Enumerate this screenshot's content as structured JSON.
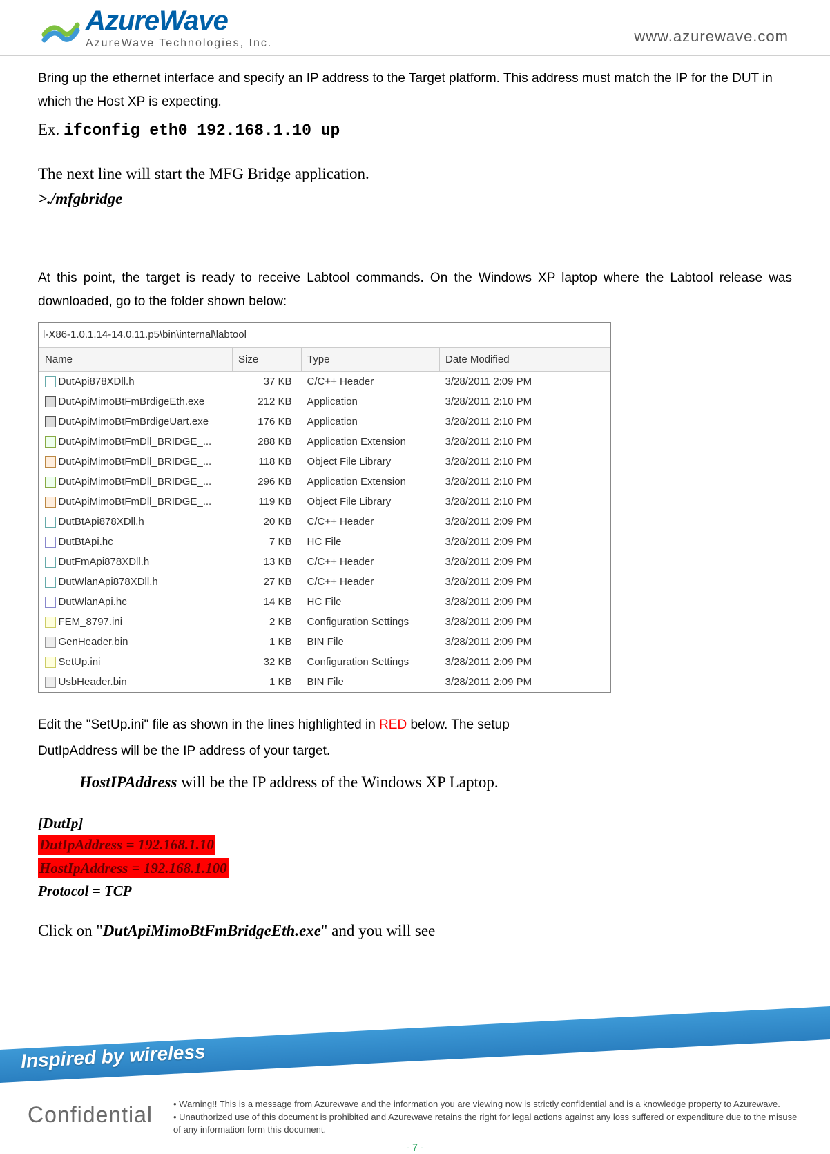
{
  "header": {
    "logo_name": "AzureWave",
    "logo_sub": "AzureWave  Technologies,  Inc.",
    "url": "www.azurewave.com",
    "logo_colors": {
      "wave1": "#7ec13f",
      "wave2": "#3d99d6",
      "text": "#0060a8"
    }
  },
  "body": {
    "p1": "Bring up the ethernet interface and specify an IP address to the Target platform. This address must match the IP for the DUT in which the Host XP is expecting.",
    "ex_label": "Ex.",
    "ex_cmd": "ifconfig eth0 192.168.1.10 up",
    "p2": "The next line will start the MFG Bridge application.",
    "p2_cmd": ">./mfgbridge",
    "p3": "At this point, the target is ready to receive Labtool commands. On the Windows XP laptop where the Labtool release was downloaded, go to the folder shown below:",
    "folder_path": "l-X86-1.0.1.14-14.0.11.p5\\bin\\internal\\labtool",
    "columns": [
      "Name",
      "Size",
      "Type",
      "Date Modified"
    ],
    "files": [
      {
        "icon": "h",
        "name": "DutApi878XDll.h",
        "size": "37 KB",
        "type": "C/C++ Header",
        "date": "3/28/2011 2:09 PM"
      },
      {
        "icon": "exe",
        "name": "DutApiMimoBtFmBrdigeEth.exe",
        "size": "212 KB",
        "type": "Application",
        "date": "3/28/2011 2:10 PM"
      },
      {
        "icon": "exe",
        "name": "DutApiMimoBtFmBrdigeUart.exe",
        "size": "176 KB",
        "type": "Application",
        "date": "3/28/2011 2:10 PM"
      },
      {
        "icon": "dll",
        "name": "DutApiMimoBtFmDll_BRIDGE_...",
        "size": "288 KB",
        "type": "Application Extension",
        "date": "3/28/2011 2:10 PM"
      },
      {
        "icon": "lib",
        "name": "DutApiMimoBtFmDll_BRIDGE_...",
        "size": "118 KB",
        "type": "Object File Library",
        "date": "3/28/2011 2:10 PM"
      },
      {
        "icon": "dll",
        "name": "DutApiMimoBtFmDll_BRIDGE_...",
        "size": "296 KB",
        "type": "Application Extension",
        "date": "3/28/2011 2:10 PM"
      },
      {
        "icon": "lib",
        "name": "DutApiMimoBtFmDll_BRIDGE_...",
        "size": "119 KB",
        "type": "Object File Library",
        "date": "3/28/2011 2:10 PM"
      },
      {
        "icon": "h",
        "name": "DutBtApi878XDll.h",
        "size": "20 KB",
        "type": "C/C++ Header",
        "date": "3/28/2011 2:09 PM"
      },
      {
        "icon": "hc",
        "name": "DutBtApi.hc",
        "size": "7 KB",
        "type": "HC File",
        "date": "3/28/2011 2:09 PM"
      },
      {
        "icon": "h",
        "name": "DutFmApi878XDll.h",
        "size": "13 KB",
        "type": "C/C++ Header",
        "date": "3/28/2011 2:09 PM"
      },
      {
        "icon": "h",
        "name": "DutWlanApi878XDll.h",
        "size": "27 KB",
        "type": "C/C++ Header",
        "date": "3/28/2011 2:09 PM"
      },
      {
        "icon": "hc",
        "name": "DutWlanApi.hc",
        "size": "14 KB",
        "type": "HC File",
        "date": "3/28/2011 2:09 PM"
      },
      {
        "icon": "ini",
        "name": "FEM_8797.ini",
        "size": "2 KB",
        "type": "Configuration Settings",
        "date": "3/28/2011 2:09 PM"
      },
      {
        "icon": "bin",
        "name": "GenHeader.bin",
        "size": "1 KB",
        "type": "BIN File",
        "date": "3/28/2011 2:09 PM"
      },
      {
        "icon": "ini",
        "name": "SetUp.ini",
        "size": "32 KB",
        "type": "Configuration Settings",
        "date": "3/28/2011 2:09 PM"
      },
      {
        "icon": "bin",
        "name": "UsbHeader.bin",
        "size": "1 KB",
        "type": "BIN File",
        "date": "3/28/2011 2:09 PM"
      }
    ],
    "p4a": "Edit the \"SetUp.ini\" file as shown in the lines highlighted in ",
    "p4_red": "RED",
    "p4b": " below. The setup",
    "p4c": "DutIpAddress will be the IP address of your target.",
    "host_line_pre": "HostIPAddress",
    "host_line_post": " will be the IP address of the Windows XP Laptop.",
    "ini_section": "[DutIp]",
    "ini_l1": "DutIpAddress  = 192.168.1.10",
    "ini_l2": "HostIpAddress = 192.168.1.100",
    "ini_l3": "Protocol = TCP",
    "click_pre": "Click on \"",
    "click_exe": "DutApiMimoBtFmBridgeEth.exe",
    "click_post": "\" and you will see"
  },
  "footer": {
    "slogan": "Inspired by wireless",
    "conf": "Confidential",
    "warn1": "Warning!! This is a message from Azurewave and the information you are viewing now is strictly confidential and is a knowledge property to Azurewave.",
    "warn2": "Unauthorized use of this document is prohibited and Azurewave retains the right for legal actions against any loss suffered or expenditure due to the misuse of any information form this document.",
    "pagenum": "- 7 -"
  }
}
